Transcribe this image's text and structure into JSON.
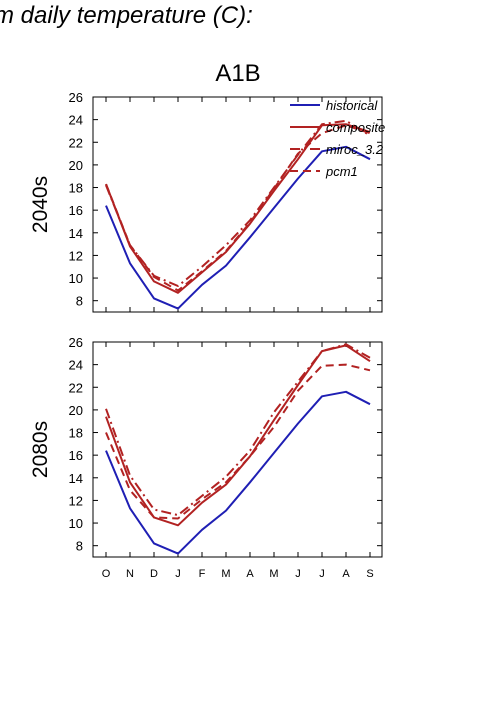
{
  "figure_title": "m daily temperature (C):",
  "chart_data": {
    "type": "line",
    "scenario_title": "A1B",
    "x": [
      "O",
      "N",
      "D",
      "J",
      "F",
      "M",
      "A",
      "M",
      "J",
      "J",
      "A",
      "S"
    ],
    "ylim": [
      7,
      26
    ],
    "y_ticks": [
      8,
      10,
      12,
      14,
      16,
      18,
      20,
      22,
      24,
      26
    ],
    "grid": false,
    "legend": {
      "placement": "top-right",
      "entries": [
        {
          "name": "historical",
          "color": "#1f1fb4",
          "style": "solid"
        },
        {
          "name": "composite",
          "color": "#b22222",
          "style": "solid"
        },
        {
          "name": "miroc_3.2",
          "color": "#b22222",
          "style": "dash-dot"
        },
        {
          "name": "pcm1",
          "color": "#b22222",
          "style": "dashed"
        }
      ]
    },
    "panels": [
      {
        "ylabel": "2040s",
        "series": [
          {
            "name": "historical",
            "values": [
              16.4,
              11.3,
              8.2,
              7.3,
              9.4,
              11.1,
              13.6,
              16.2,
              18.8,
              21.2,
              21.6,
              20.5
            ]
          },
          {
            "name": "composite",
            "values": [
              18.3,
              12.8,
              9.7,
              8.7,
              10.5,
              12.3,
              14.8,
              17.7,
              20.5,
              23.5,
              23.6,
              22.9
            ]
          },
          {
            "name": "miroc_3.2",
            "values": [
              18.2,
              12.9,
              10.2,
              9.3,
              11.0,
              12.9,
              15.1,
              18.0,
              20.9,
              23.6,
              23.9,
              22.6
            ]
          },
          {
            "name": "pcm1",
            "values": [
              18.3,
              12.9,
              10.1,
              8.9,
              10.6,
              12.4,
              14.9,
              17.9,
              21.0,
              22.8,
              23.5,
              22.8
            ]
          }
        ]
      },
      {
        "ylabel": "2080s",
        "series": [
          {
            "name": "historical",
            "values": [
              16.4,
              11.3,
              8.2,
              7.3,
              9.4,
              11.1,
              13.6,
              16.2,
              18.8,
              21.2,
              21.6,
              20.5
            ]
          },
          {
            "name": "composite",
            "values": [
              19.4,
              13.6,
              10.5,
              9.8,
              11.8,
              13.4,
              15.9,
              19.1,
              22.2,
              25.2,
              25.7,
              24.3
            ]
          },
          {
            "name": "miroc_3.2",
            "values": [
              20.1,
              14.2,
              11.2,
              10.7,
              12.4,
              14.1,
              16.4,
              19.8,
              22.5,
              25.2,
              25.8,
              24.6
            ]
          },
          {
            "name": "pcm1",
            "values": [
              18.0,
              12.9,
              10.5,
              10.4,
              12.1,
              13.6,
              15.9,
              18.5,
              21.7,
              23.9,
              24.0,
              23.5
            ]
          }
        ]
      }
    ]
  }
}
